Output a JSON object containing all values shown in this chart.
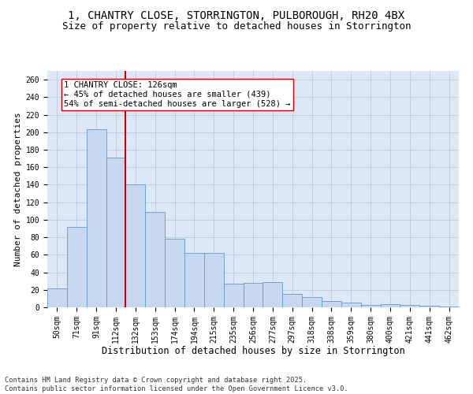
{
  "title_line1": "1, CHANTRY CLOSE, STORRINGTON, PULBOROUGH, RH20 4BX",
  "title_line2": "Size of property relative to detached houses in Storrington",
  "xlabel": "Distribution of detached houses by size in Storrington",
  "ylabel": "Number of detached properties",
  "categories": [
    "50sqm",
    "71sqm",
    "91sqm",
    "112sqm",
    "132sqm",
    "153sqm",
    "174sqm",
    "194sqm",
    "215sqm",
    "235sqm",
    "256sqm",
    "277sqm",
    "297sqm",
    "318sqm",
    "338sqm",
    "359sqm",
    "380sqm",
    "400sqm",
    "421sqm",
    "441sqm",
    "462sqm"
  ],
  "values": [
    22,
    92,
    203,
    171,
    140,
    109,
    78,
    62,
    62,
    27,
    28,
    29,
    15,
    12,
    7,
    5,
    3,
    4,
    3,
    2,
    1
  ],
  "bar_color": "#c5d8ef",
  "bar_edge_color": "#6699cc",
  "vline_x": 3.5,
  "vline_color": "#cc0000",
  "annotation_text": "1 CHANTRY CLOSE: 126sqm\n← 45% of detached houses are smaller (439)\n54% of semi-detached houses are larger (528) →",
  "annotation_box_color": "#ffffff",
  "annotation_box_edge": "#cc0000",
  "annotation_fontsize": 7.5,
  "grid_color": "#c0cfe0",
  "background_color": "#dce8f5",
  "ylim": [
    0,
    270
  ],
  "yticks": [
    0,
    20,
    40,
    60,
    80,
    100,
    120,
    140,
    160,
    180,
    200,
    220,
    240,
    260
  ],
  "footnote": "Contains HM Land Registry data © Crown copyright and database right 2025.\nContains public sector information licensed under the Open Government Licence v3.0.",
  "title_fontsize": 10,
  "subtitle_fontsize": 9,
  "xlabel_fontsize": 8.5,
  "ylabel_fontsize": 8,
  "tick_fontsize": 7
}
